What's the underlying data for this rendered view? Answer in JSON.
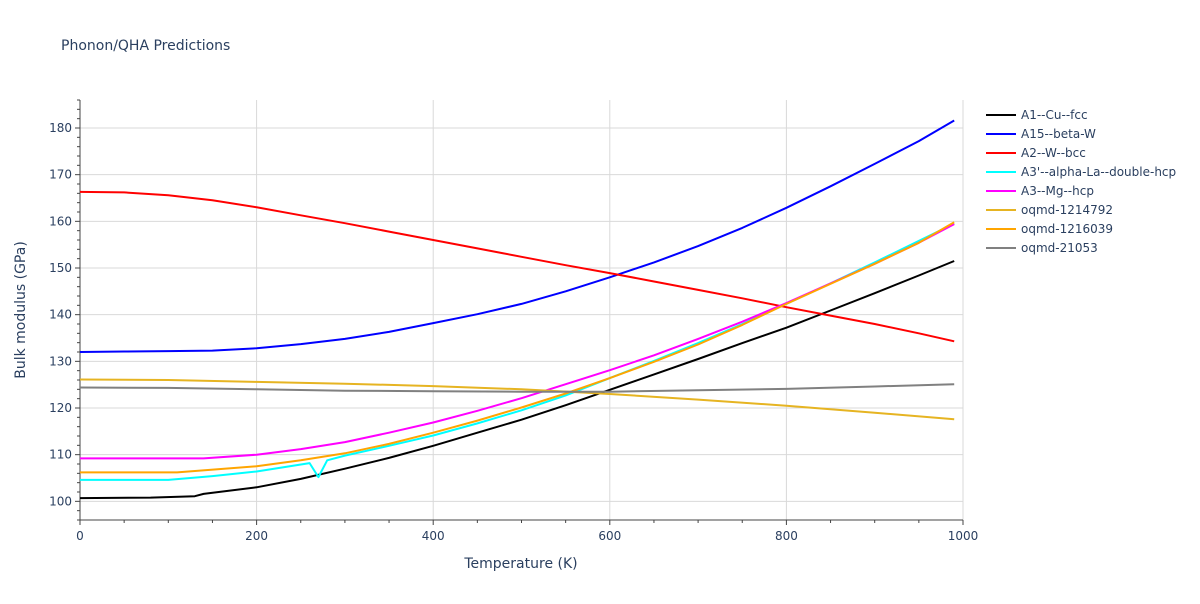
{
  "chart_data": {
    "type": "line",
    "title": "Phonon/QHA Predictions",
    "xlabel": "Temperature (K)",
    "ylabel": "Bulk modulus (GPa)",
    "xlim": [
      0,
      1000
    ],
    "ylim": [
      96,
      186
    ],
    "xticks": [
      0,
      200,
      400,
      600,
      800,
      1000
    ],
    "yticks": [
      100,
      110,
      120,
      130,
      140,
      150,
      160,
      170,
      180
    ],
    "grid": true,
    "legend_position": "right",
    "series": [
      {
        "name": "A1--Cu--fcc",
        "color": "#000000",
        "x": [
          0,
          80,
          130,
          140,
          200,
          250,
          300,
          350,
          400,
          450,
          500,
          550,
          600,
          650,
          700,
          750,
          800,
          850,
          900,
          950,
          990
        ],
        "y": [
          100.7,
          100.8,
          101.1,
          101.6,
          103.0,
          104.8,
          107.0,
          109.3,
          111.9,
          114.7,
          117.5,
          120.6,
          123.9,
          127.2,
          130.5,
          133.9,
          137.2,
          140.9,
          144.6,
          148.4,
          151.5
        ]
      },
      {
        "name": "A15--beta-W",
        "color": "#0000ff",
        "x": [
          0,
          50,
          100,
          150,
          200,
          250,
          300,
          350,
          400,
          450,
          500,
          550,
          600,
          650,
          700,
          750,
          800,
          850,
          900,
          950,
          990
        ],
        "y": [
          132.0,
          132.1,
          132.2,
          132.3,
          132.8,
          133.7,
          134.8,
          136.3,
          138.2,
          140.1,
          142.3,
          145.0,
          148.0,
          151.2,
          154.7,
          158.6,
          162.9,
          167.5,
          172.3,
          177.2,
          181.6
        ]
      },
      {
        "name": "A2--W--bcc",
        "color": "#ff0000",
        "x": [
          0,
          50,
          100,
          150,
          200,
          250,
          300,
          350,
          400,
          450,
          500,
          550,
          600,
          650,
          700,
          750,
          800,
          850,
          900,
          950,
          990
        ],
        "y": [
          166.3,
          166.2,
          165.6,
          164.5,
          163.0,
          161.3,
          159.6,
          157.8,
          156.0,
          154.2,
          152.4,
          150.6,
          148.9,
          147.1,
          145.3,
          143.5,
          141.6,
          139.8,
          138.0,
          136.0,
          134.3
        ]
      },
      {
        "name": "A3'--alpha-La--double-hcp",
        "color": "#00ffff",
        "x": [
          0,
          100,
          150,
          200,
          260,
          270,
          280,
          300,
          350,
          400,
          450,
          500,
          550,
          600,
          650,
          700,
          750,
          800,
          850,
          900,
          950,
          990
        ],
        "y": [
          104.6,
          104.6,
          105.4,
          106.4,
          108.2,
          105.2,
          108.8,
          109.8,
          111.9,
          114.1,
          116.7,
          119.5,
          122.7,
          126.4,
          130.1,
          133.9,
          138.0,
          142.3,
          146.7,
          151.2,
          155.8,
          159.5
        ]
      },
      {
        "name": "A3--Mg--hcp",
        "color": "#ff00ff",
        "x": [
          0,
          100,
          140,
          200,
          250,
          300,
          350,
          400,
          450,
          500,
          550,
          600,
          650,
          700,
          750,
          800,
          850,
          900,
          950,
          990
        ],
        "y": [
          109.2,
          109.2,
          109.2,
          110.0,
          111.2,
          112.7,
          114.7,
          116.9,
          119.4,
          122.1,
          125.1,
          128.1,
          131.3,
          134.8,
          138.5,
          142.5,
          146.7,
          150.9,
          155.4,
          159.4
        ]
      },
      {
        "name": "oqmd-1214792",
        "color": "#e6b422",
        "x": [
          0,
          100,
          200,
          300,
          400,
          500,
          600,
          700,
          800,
          900,
          990
        ],
        "y": [
          126.1,
          126.0,
          125.6,
          125.2,
          124.7,
          124.0,
          123.0,
          121.8,
          120.5,
          119.0,
          117.6
        ]
      },
      {
        "name": "oqmd-1216039",
        "color": "#ffa500",
        "x": [
          0,
          110,
          200,
          250,
          300,
          350,
          400,
          450,
          500,
          550,
          600,
          650,
          700,
          750,
          800,
          850,
          900,
          950,
          990
        ],
        "y": [
          106.2,
          106.2,
          107.5,
          108.8,
          110.3,
          112.3,
          114.7,
          117.3,
          120.1,
          123.1,
          126.4,
          129.9,
          133.6,
          137.8,
          142.3,
          146.6,
          150.9,
          155.4,
          159.8
        ]
      },
      {
        "name": "oqmd-21053",
        "color": "#808080",
        "x": [
          0,
          100,
          200,
          300,
          400,
          500,
          600,
          700,
          800,
          900,
          990
        ],
        "y": [
          124.4,
          124.3,
          124.0,
          123.7,
          123.6,
          123.5,
          123.5,
          123.8,
          124.1,
          124.6,
          125.1
        ]
      }
    ]
  }
}
